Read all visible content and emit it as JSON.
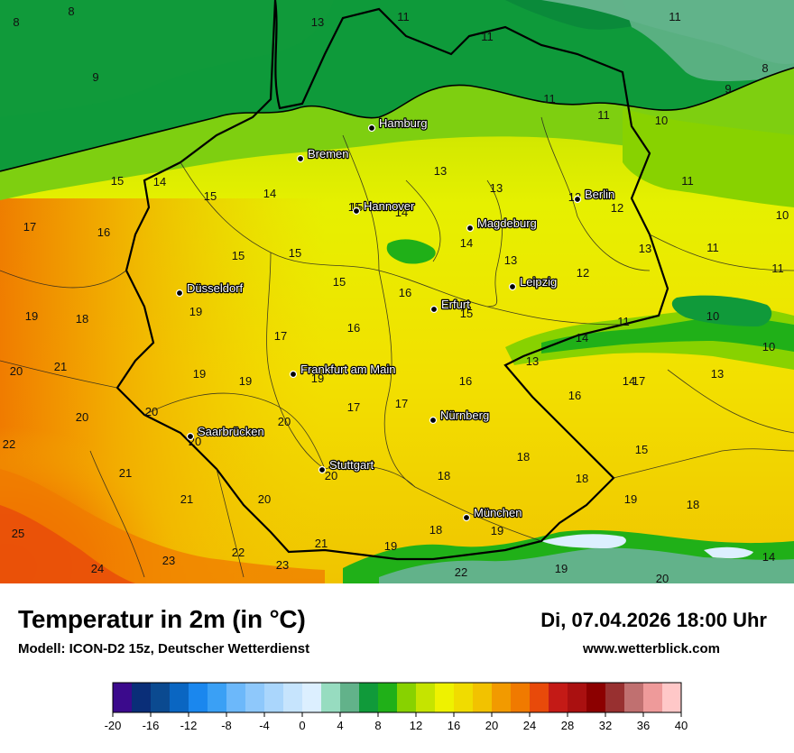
{
  "map": {
    "cities": [
      {
        "name": "Hamburg",
        "id": "hamburg"
      },
      {
        "name": "Bremen",
        "id": "bremen"
      },
      {
        "name": "Hannover",
        "id": "hannover"
      },
      {
        "name": "Berlin",
        "id": "berlin"
      },
      {
        "name": "Magdeburg",
        "id": "magdeburg"
      },
      {
        "name": "Leipzig",
        "id": "leipzig"
      },
      {
        "name": "Düsseldorf",
        "id": "duesseldorf"
      },
      {
        "name": "Erfurt",
        "id": "erfurt"
      },
      {
        "name": "Frankfurt am Main",
        "id": "frankfurt"
      },
      {
        "name": "Nürnberg",
        "id": "nuernberg"
      },
      {
        "name": "Saarbrücken",
        "id": "saarbruecken"
      },
      {
        "name": "Stuttgart",
        "id": "stuttgart"
      },
      {
        "name": "München",
        "id": "muenchen"
      }
    ],
    "temperature_labels": [
      "8",
      "8",
      "9",
      "13",
      "11",
      "11",
      "11",
      "11",
      "11",
      "8",
      "9",
      "10",
      "11",
      "10",
      "11",
      "11",
      "12",
      "11",
      "10",
      "10",
      "12",
      "13",
      "13",
      "13",
      "14",
      "13",
      "13",
      "14",
      "14",
      "15",
      "14",
      "15",
      "17",
      "16",
      "15",
      "15",
      "16",
      "15",
      "15",
      "15",
      "19",
      "18",
      "19",
      "17",
      "19",
      "21",
      "19",
      "20",
      "19",
      "17",
      "16",
      "17",
      "20",
      "20",
      "20",
      "16",
      "20",
      "18",
      "17",
      "20",
      "22",
      "21",
      "21",
      "20",
      "18",
      "18",
      "19",
      "18",
      "19",
      "25",
      "24",
      "23",
      "22",
      "23",
      "21",
      "19",
      "22",
      "19",
      "20",
      "18",
      "14",
      "13",
      "14",
      "13",
      "15",
      "16",
      "15",
      "14"
    ]
  },
  "footer": {
    "title": "Temperatur in 2m (in °C)",
    "model": "Modell: ICON-D2 15z, Deutscher Wetterdienst",
    "datetime": "Di, 07.04.2026 18:00 Uhr",
    "website": "www.wetterblick.com"
  },
  "legend": {
    "ticks": [
      "-20",
      "-16",
      "-12",
      "-8",
      "-4",
      "0",
      "4",
      "8",
      "12",
      "16",
      "20",
      "24",
      "28",
      "32",
      "36",
      "40"
    ],
    "colors": [
      "#3b0a8c",
      "#0a2e78",
      "#0b4a90",
      "#0a66c2",
      "#1a87ee",
      "#3aa0f5",
      "#6cb8fa",
      "#8ec8fb",
      "#aad6fc",
      "#c6e4fd",
      "#dcefff",
      "#97dcc0",
      "#62b28a",
      "#109a3a",
      "#20b018",
      "#88d200",
      "#c5e400",
      "#eef200",
      "#f0dc00",
      "#f2c200",
      "#f29a00",
      "#f07a00",
      "#e84a0a",
      "#c41a16",
      "#aa1010",
      "#8c0000",
      "#983030",
      "#c07070",
      "#ee9a9a",
      "#ffc8c8"
    ]
  }
}
